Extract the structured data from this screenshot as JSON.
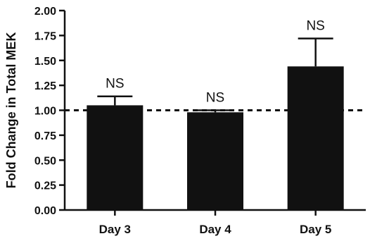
{
  "chart_data": {
    "type": "bar",
    "ylabel": "Fold Change in Total MEK",
    "xlabel": "",
    "categories": [
      "Day 3",
      "Day 4",
      "Day 5"
    ],
    "values": [
      1.05,
      0.98,
      1.44
    ],
    "error_upper": [
      1.14,
      1.0,
      1.72
    ],
    "annotations": [
      "NS",
      "NS",
      "NS"
    ],
    "ylim": [
      0,
      2.0
    ],
    "yticks": [
      "0.00",
      "0.25",
      "0.50",
      "0.75",
      "1.00",
      "1.25",
      "1.50",
      "1.75",
      "2.00"
    ],
    "reference_line": 1.0,
    "bar_color": "#111111",
    "grid": false
  }
}
